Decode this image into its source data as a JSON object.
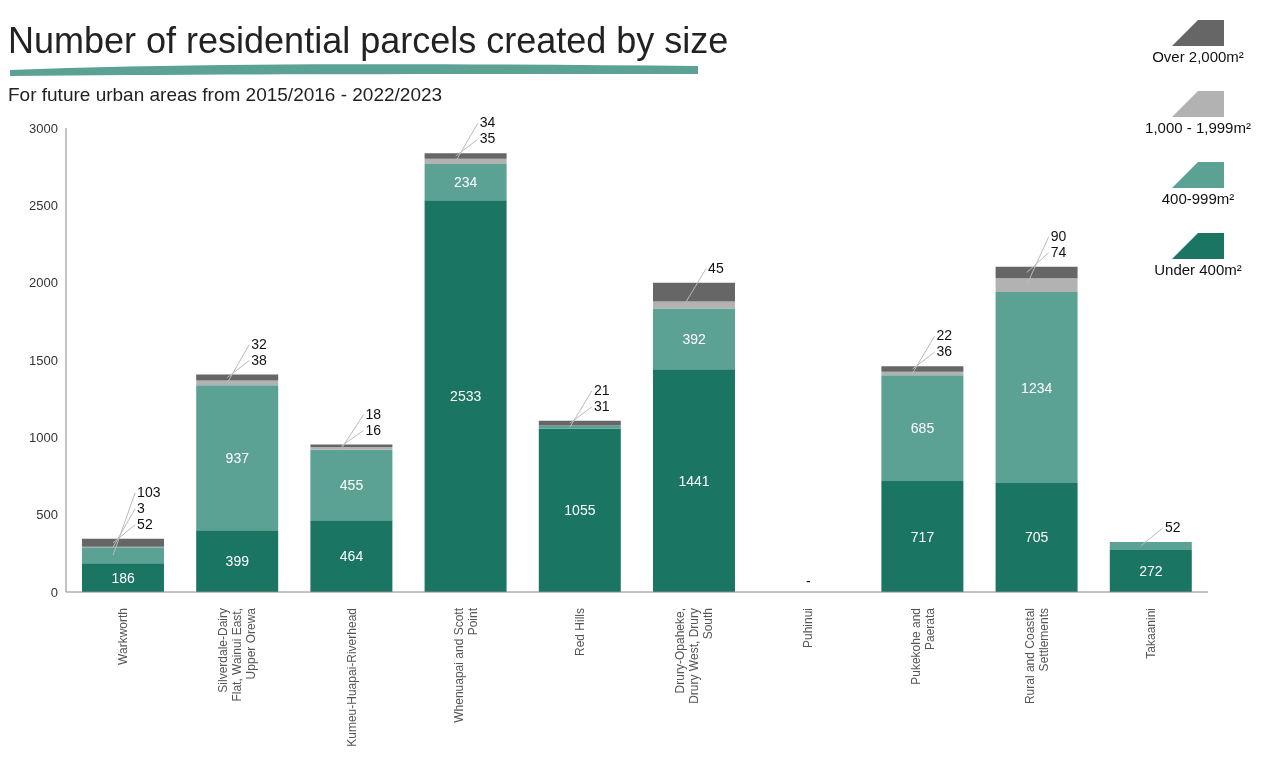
{
  "chart_data": {
    "type": "bar",
    "stacked": true,
    "title": "Number of residential parcels created by size",
    "subtitle": "For future urban areas from 2015/2016 - 2022/2023",
    "categories": [
      "Warkworth",
      "Silverdale-Dairy Flat, Wainui East, Upper Orewa",
      "Kumeu-Huapai-Riverhead",
      "Whenuapai and Scott Point",
      "Red Hills",
      "Drury-Opaheke, Drury West, Drury South",
      "Puhinui",
      "Pukekohe and Paerata",
      "Rural and Coastal Settlements",
      "Takaanini"
    ],
    "series": [
      {
        "name": "Under 400m²",
        "color": "#1a7662",
        "values": [
          186,
          399,
          464,
          2533,
          1055,
          1441,
          0,
          717,
          705,
          272
        ],
        "value_labels": [
          "186",
          "399",
          "464",
          "2533",
          "1055",
          "1441",
          "-",
          "717",
          "705",
          "272"
        ]
      },
      {
        "name": "400-999m²",
        "color": "#5ba194",
        "values": [
          103,
          937,
          455,
          234,
          21,
          392,
          0,
          685,
          1234,
          52
        ],
        "value_labels": [
          "103",
          "937",
          "455",
          "234",
          "21",
          "392",
          null,
          "685",
          "1234",
          "52"
        ]
      },
      {
        "name": "1,000 - 1,999m²",
        "color": "#b2b2b2",
        "values": [
          3,
          32,
          18,
          34,
          null,
          45,
          0,
          22,
          90,
          0
        ],
        "value_labels": [
          "3",
          "32",
          "18",
          "34",
          null,
          "45",
          null,
          "22",
          "90",
          null
        ]
      },
      {
        "name": "Over 2,000m²",
        "color": "#666666",
        "values": [
          52,
          38,
          16,
          35,
          31,
          122,
          0,
          36,
          74,
          0
        ],
        "value_labels": [
          "52",
          "38",
          "16",
          "35",
          "31",
          null,
          null,
          "36",
          "74",
          null
        ]
      }
    ],
    "ylim": [
      0,
      3000
    ],
    "yticks": [
      0,
      500,
      1000,
      1500,
      2000,
      2500,
      3000
    ],
    "grid": false,
    "legend": "top right"
  }
}
